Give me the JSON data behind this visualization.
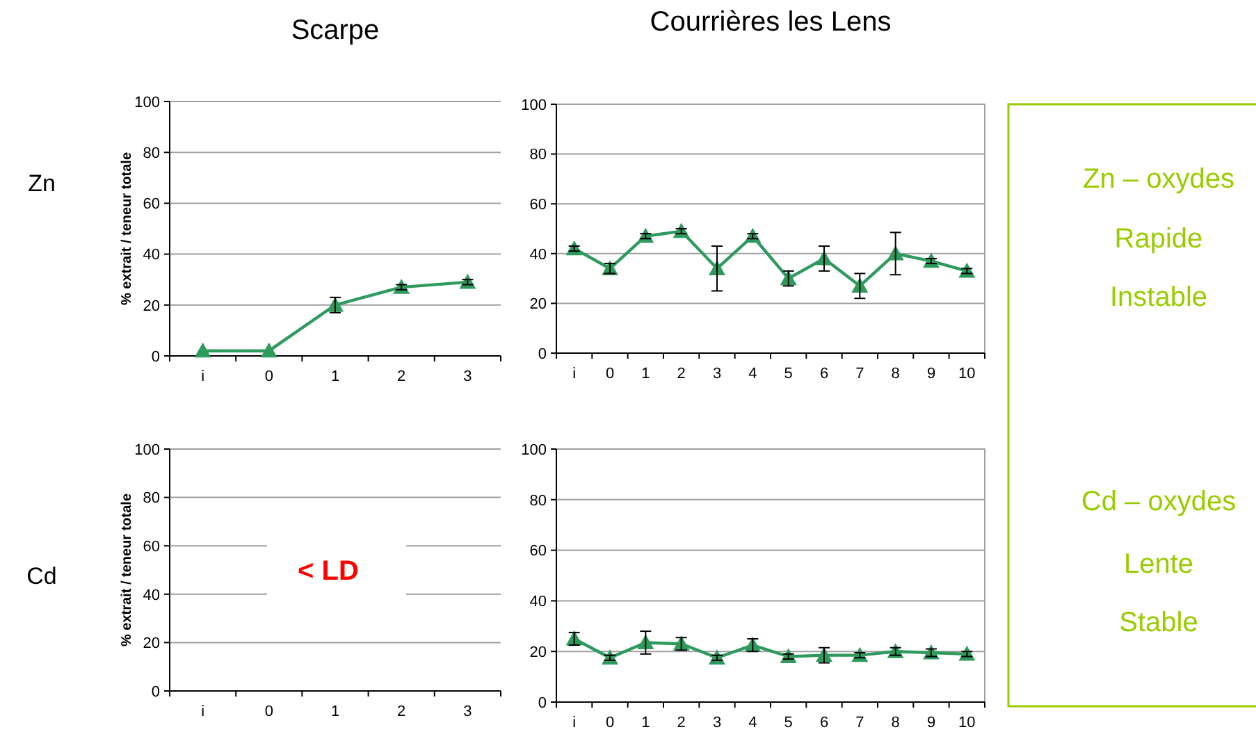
{
  "chart_data": [
    {
      "type": "line",
      "title": "Scarpe",
      "ylabel": "% extrait / teneur totale",
      "annotations": [
        "Zn"
      ],
      "categories": [
        "i",
        "0",
        "1",
        "2",
        "3"
      ],
      "ylim": [
        0,
        100
      ],
      "yticks": [
        0,
        20,
        40,
        60,
        80,
        100
      ],
      "grid": "y",
      "marker": "triangle",
      "line_style": "solid",
      "series": [
        {
          "color": "#2e9a5e",
          "values": [
            2,
            2,
            20,
            27,
            29
          ],
          "errors": [
            null,
            null,
            3,
            1,
            1
          ]
        }
      ]
    },
    {
      "type": "line",
      "title": "Courrières les Lens",
      "categories": [
        "i",
        "0",
        "1",
        "2",
        "3",
        "4",
        "5",
        "6",
        "7",
        "8",
        "9",
        "10"
      ],
      "ylim": [
        0,
        100
      ],
      "yticks": [
        0,
        20,
        40,
        60,
        80,
        100
      ],
      "grid": "y",
      "marker": "triangle",
      "line_style": "solid",
      "series": [
        {
          "color": "#2e9a5e",
          "values": [
            42,
            34,
            47,
            49,
            34,
            47,
            30,
            38,
            27,
            40,
            37,
            33
          ],
          "errors": [
            1,
            2,
            1,
            1,
            9,
            1,
            3,
            5,
            5,
            8.5,
            1,
            1
          ]
        }
      ]
    },
    {
      "type": "line",
      "ylabel": "% extrait / teneur totale",
      "annotations": [
        "Cd",
        "< LD"
      ],
      "categories": [
        "i",
        "0",
        "1",
        "2",
        "3"
      ],
      "ylim": [
        0,
        100
      ],
      "yticks": [
        0,
        20,
        40,
        60,
        80,
        100
      ],
      "grid": "y"
    },
    {
      "type": "line",
      "categories": [
        "i",
        "0",
        "1",
        "2",
        "3",
        "4",
        "5",
        "6",
        "7",
        "8",
        "9",
        "10"
      ],
      "ylim": [
        0,
        100
      ],
      "yticks": [
        0,
        20,
        40,
        60,
        80,
        100
      ],
      "grid": "y",
      "marker": "triangle",
      "line_style": "solid",
      "series": [
        {
          "color": "#2e9a5e",
          "values": [
            25,
            17.5,
            23.5,
            23,
            17.5,
            22.5,
            18,
            18.5,
            18.5,
            20,
            19.5,
            19
          ],
          "errors": [
            2.5,
            1,
            4.5,
            2.5,
            1,
            2.5,
            1,
            3,
            1,
            1.5,
            1.5,
            1
          ]
        }
      ]
    },
    {
      "type": "other",
      "annotations": [
        "Zn – oxydes",
        "Rapide",
        "Instable",
        "Cd – oxydes",
        "Lente",
        "Stable"
      ]
    }
  ]
}
